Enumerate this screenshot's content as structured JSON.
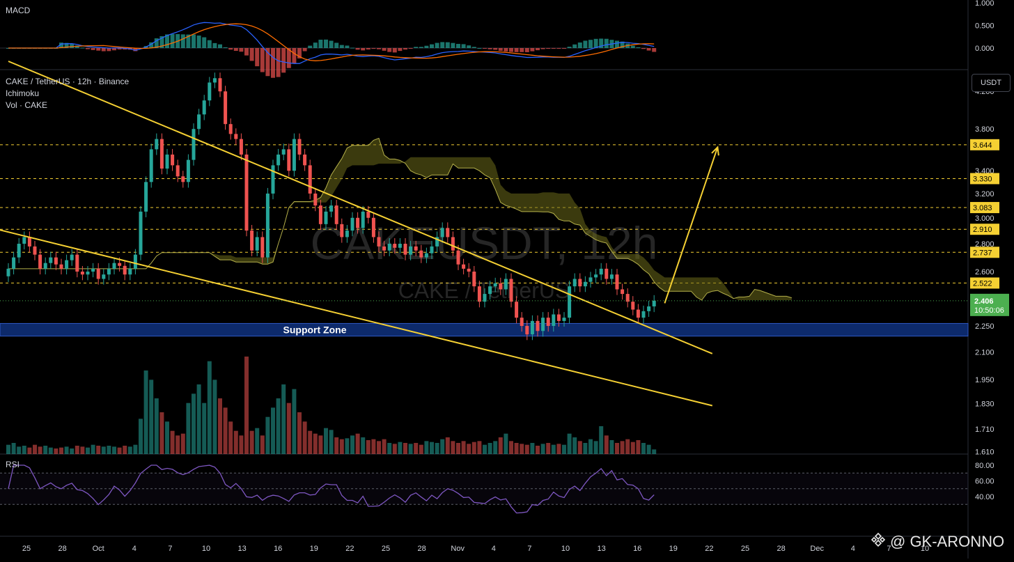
{
  "symbol_line": "CAKE / TetherUS · 12h · Binance",
  "indicator_ichimoku": "Ichimoku",
  "indicator_vol": "Vol · CAKE",
  "macd_label": "MACD",
  "rsi_label": "RSI",
  "currency_button": "USDT",
  "bg_watermark_main": "CAKEUSDT, 12h",
  "bg_watermark_sub": "CAKE / TetherUS",
  "support_zone_label": "Support Zone",
  "author_watermark": "@ GK-ARONNO",
  "price_axis": {
    "ticks": [
      "4.200",
      "3.800",
      "3.400",
      "3.200",
      "3.000",
      "2.800",
      "2.600",
      "2.250",
      "2.100",
      "1.950",
      "1.830",
      "1.710",
      "1.610"
    ],
    "levels": [
      "3.644",
      "3.330",
      "3.083",
      "2.910",
      "2.737",
      "2.522"
    ],
    "last_price": "2.406",
    "countdown": "10:50:06"
  },
  "macd_axis": [
    "1.000",
    "0.500",
    "0.000"
  ],
  "rsi_axis": [
    "80.00",
    "60.00",
    "40.00"
  ],
  "time_axis": [
    "25",
    "28",
    "Oct",
    "4",
    "7",
    "10",
    "13",
    "16",
    "19",
    "22",
    "25",
    "28",
    "Nov",
    "4",
    "7",
    "10",
    "13",
    "16",
    "19",
    "22",
    "25",
    "28",
    "Dec",
    "4",
    "7",
    "10"
  ],
  "colors": {
    "up": "#26a69a",
    "down": "#ef5350",
    "trendline": "#f5d033",
    "cloud": "#6b6a1a",
    "support": "#0d2a6b",
    "rsi": "#7e57c2",
    "price_badge": "#4caf50"
  },
  "chart_data": {
    "type": "candlestick",
    "title": "CAKE / TetherUS · 12h · Binance",
    "ylim": [
      1.6,
      4.45
    ],
    "log_scale": true,
    "grid": false,
    "support_zone": [
      2.19,
      2.265
    ],
    "closes": [
      2.62,
      2.7,
      2.8,
      2.85,
      2.78,
      2.72,
      2.62,
      2.66,
      2.7,
      2.65,
      2.62,
      2.68,
      2.72,
      2.6,
      2.58,
      2.6,
      2.62,
      2.55,
      2.58,
      2.62,
      2.66,
      2.64,
      2.58,
      2.62,
      2.72,
      3.05,
      3.3,
      3.6,
      3.7,
      3.42,
      3.55,
      3.45,
      3.35,
      3.3,
      3.5,
      3.8,
      3.95,
      4.1,
      4.3,
      4.35,
      4.2,
      3.85,
      3.75,
      3.7,
      3.55,
      2.9,
      2.75,
      2.85,
      2.7,
      3.2,
      3.45,
      3.55,
      3.6,
      3.4,
      3.7,
      3.55,
      3.45,
      3.2,
      3.1,
      2.95,
      3.05,
      3.1,
      2.95,
      2.85,
      2.9,
      3.0,
      2.92,
      3.05,
      3.0,
      2.85,
      2.78,
      2.75,
      2.8,
      2.77,
      2.8,
      2.72,
      2.78,
      2.75,
      2.7,
      2.73,
      2.78,
      2.85,
      2.92,
      2.85,
      2.75,
      2.65,
      2.62,
      2.6,
      2.5,
      2.4,
      2.45,
      2.5,
      2.52,
      2.48,
      2.55,
      2.4,
      2.3,
      2.25,
      2.2,
      2.28,
      2.22,
      2.3,
      2.25,
      2.32,
      2.28,
      2.3,
      2.5,
      2.55,
      2.5,
      2.53,
      2.56,
      2.58,
      2.62,
      2.55,
      2.58,
      2.48,
      2.45,
      2.4,
      2.35,
      2.3,
      2.34,
      2.37,
      2.406
    ],
    "volume": [
      10,
      12,
      8,
      9,
      7,
      10,
      8,
      9,
      7,
      6,
      7,
      8,
      6,
      9,
      8,
      7,
      10,
      9,
      8,
      9,
      8,
      7,
      9,
      8,
      10,
      38,
      90,
      80,
      60,
      45,
      35,
      25,
      20,
      22,
      55,
      65,
      75,
      55,
      100,
      80,
      60,
      50,
      35,
      25,
      20,
      105,
      25,
      28,
      20,
      40,
      50,
      60,
      75,
      55,
      70,
      45,
      35,
      25,
      22,
      20,
      28,
      26,
      18,
      16,
      17,
      20,
      22,
      18,
      15,
      16,
      14,
      16,
      12,
      11,
      13,
      12,
      11,
      12,
      10,
      14,
      13,
      12,
      16,
      18,
      14,
      12,
      14,
      11,
      13,
      14,
      10,
      12,
      14,
      18,
      22,
      14,
      12,
      11,
      10,
      12,
      9,
      11,
      12,
      10,
      11,
      10,
      22,
      18,
      14,
      12,
      16,
      14,
      30,
      20,
      15,
      12,
      14,
      16,
      13,
      15,
      12,
      10,
      5
    ],
    "trendlines": [
      {
        "from": [
          0,
          4.55
        ],
        "to": [
          133,
          2.09
        ]
      },
      {
        "from": [
          -8,
          2.97
        ],
        "to": [
          133,
          1.82
        ]
      }
    ],
    "projection_arrow": {
      "from": [
        124,
        2.39
      ],
      "to": [
        134,
        3.62
      ]
    }
  }
}
